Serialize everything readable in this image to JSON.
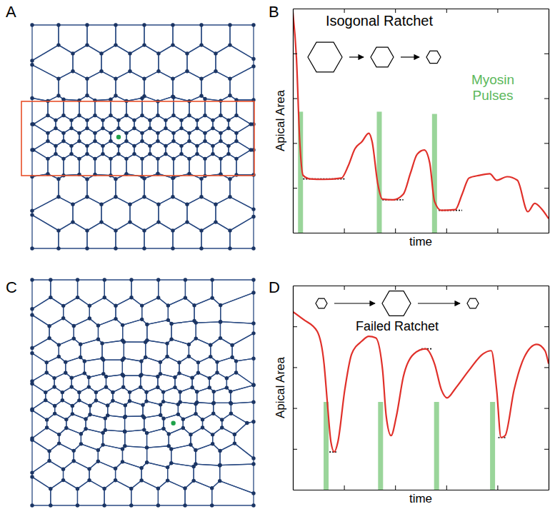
{
  "panel_labels": [
    "A",
    "B",
    "C",
    "D"
  ],
  "chart_data": [
    {
      "type": "line",
      "title": "Isogonal Ratchet",
      "annotation": "Myosin Pulses",
      "xlabel": "time",
      "ylabel": "Apical Area",
      "xlim": [
        0,
        100
      ],
      "ylim": [
        0,
        100
      ],
      "xticks": [
        20,
        40,
        60,
        80
      ],
      "yticks": [
        20,
        40,
        60,
        80
      ],
      "tick_labels": false,
      "x": [
        0,
        1.4,
        2.7,
        4,
        6.8,
        12,
        19,
        21.6,
        24.3,
        27,
        29.7,
        31,
        33.2,
        35,
        39.2,
        43.2,
        46,
        48.6,
        51.4,
        53.5,
        55.4,
        58,
        63.5,
        66.2,
        68.9,
        73,
        77,
        79.7,
        83.8,
        87.8,
        91.9,
        94.6,
        97.3,
        100
      ],
      "series": [
        {
          "color": "#e0302a",
          "values": [
            98.4,
            78,
            40.6,
            25.6,
            24,
            23.8,
            24.4,
            29.7,
            37.5,
            40.6,
            44.4,
            40.6,
            21.9,
            15,
            14.7,
            17.2,
            26.6,
            35,
            36.9,
            31.3,
            14,
            10,
            10.3,
            17.2,
            24.4,
            25.6,
            26.3,
            23.4,
            25,
            23.4,
            9.4,
            13.1,
            10.6,
            6.3
          ]
        }
      ],
      "pulses": {
        "color": "#8fd08f",
        "x": [
          3,
          33.8,
          55.4
        ],
        "values": [
          54,
          54,
          53
        ]
      },
      "levels": {
        "x0": [
          4,
          35,
          57
        ],
        "x1": [
          20.3,
          43.2,
          66.2
        ],
        "y": [
          24,
          14.7,
          10
        ]
      }
    },
    {
      "type": "line",
      "title": "Failed Ratchet",
      "xlabel": "time",
      "ylabel": "Apical Area",
      "xlim": [
        0,
        100
      ],
      "ylim": [
        0,
        100
      ],
      "xticks": [
        20,
        40,
        60,
        80
      ],
      "yticks": [
        20,
        40,
        60,
        80
      ],
      "tick_labels": false,
      "x": [
        0,
        4.1,
        9.5,
        12.2,
        13.5,
        14.9,
        16.2,
        17.6,
        20.3,
        23,
        27,
        29.7,
        32.4,
        35.1,
        36.5,
        38.4,
        40.5,
        43.2,
        47.3,
        51.9,
        55.4,
        58.1,
        60.3,
        63.5,
        68.9,
        74.3,
        77.6,
        79.7,
        81.4,
        83,
        86.5,
        90.5,
        95.4,
        98.6,
        100
      ],
      "series": [
        {
          "color": "#e0302a",
          "values": [
            87.2,
            83.4,
            77.6,
            61.7,
            42.5,
            23.3,
            18.5,
            23.3,
            48.9,
            66.5,
            72.8,
            75.1,
            74.4,
            58.5,
            36.1,
            26.5,
            36.1,
            55.3,
            66.5,
            69,
            61.7,
            48.9,
            45,
            49.5,
            58.5,
            66.5,
            68.1,
            48.9,
            25.6,
            26.5,
            48.9,
            64.9,
            71.2,
            68.1,
            61.7
          ]
        }
      ],
      "pulses": {
        "color": "#8fd08f",
        "x": [
          13,
          34.3,
          56.2,
          78.1
        ],
        "values": [
          43,
          43,
          43,
          43
        ]
      },
      "levels": {
        "x0": [
          14.3,
          50.3,
          80.3
        ],
        "x1": [
          17,
          54.3,
          83.5
        ],
        "y": [
          18.5,
          69,
          25.5
        ]
      }
    }
  ]
}
